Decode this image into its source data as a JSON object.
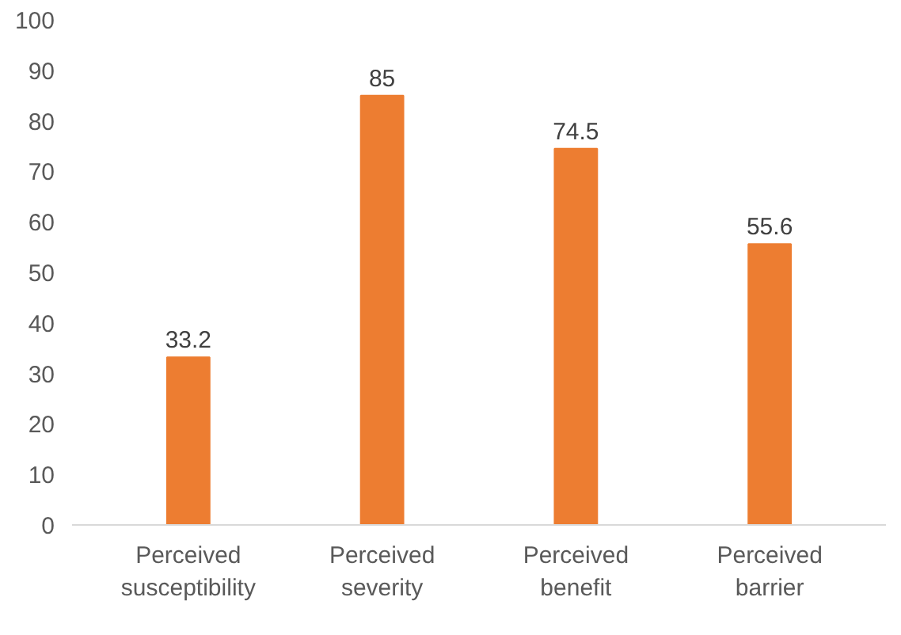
{
  "chart_data": {
    "type": "bar",
    "categories": [
      "Perceived susceptibility",
      "Perceived severity",
      "Perceived benefit",
      "Perceived barrier"
    ],
    "values": [
      33.2,
      85,
      74.5,
      55.6
    ],
    "color": "#ed7d31",
    "ylim": [
      0,
      100
    ],
    "yticks": [
      0,
      10,
      20,
      30,
      40,
      50,
      60,
      70,
      80,
      90,
      100
    ],
    "data_labels": true,
    "grid": false
  }
}
